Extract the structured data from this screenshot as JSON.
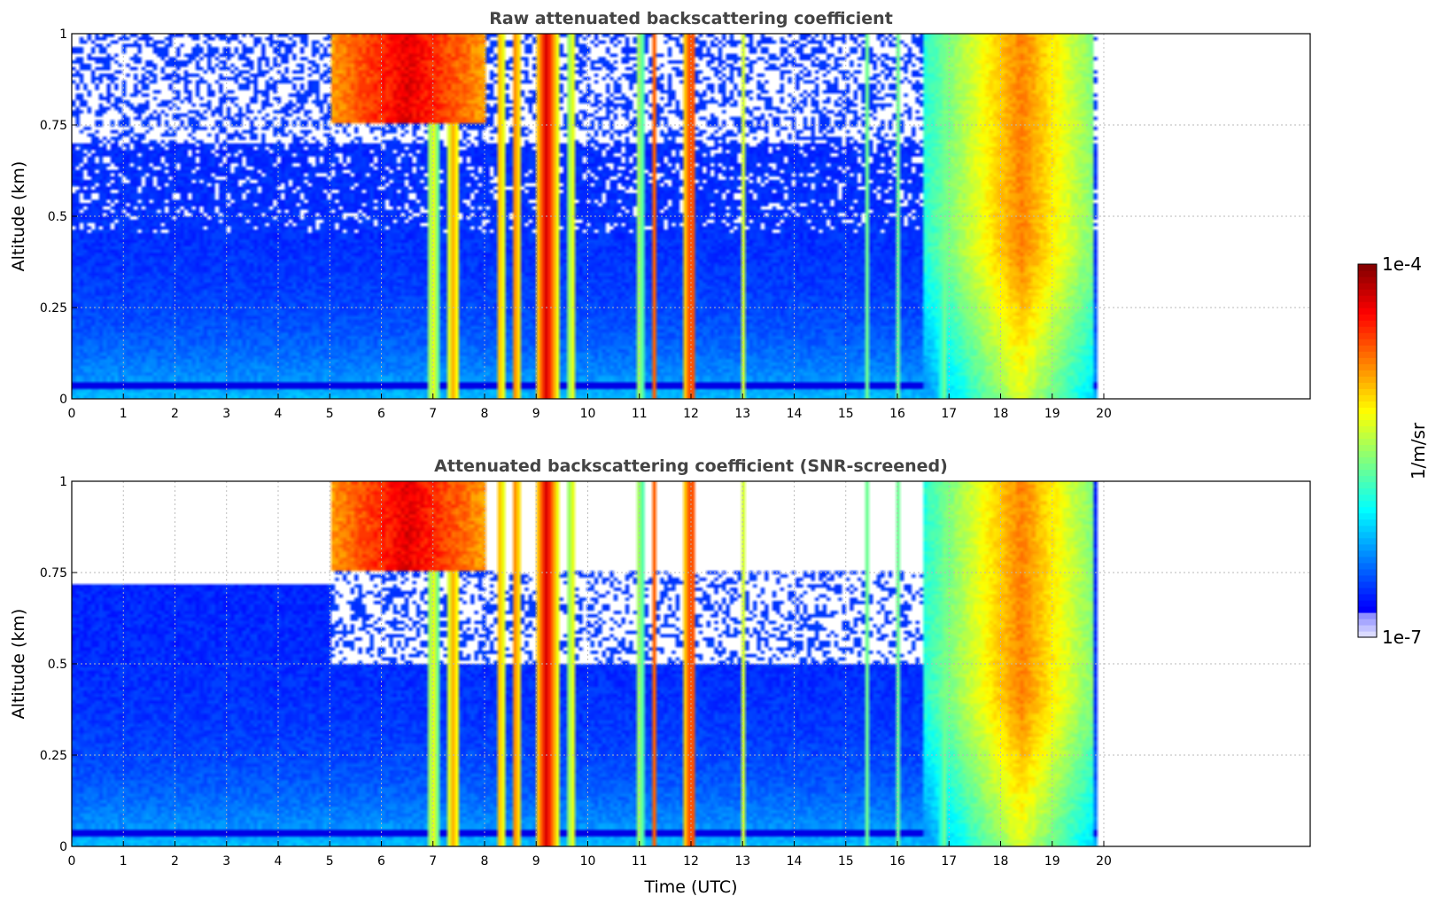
{
  "chart_data": [
    {
      "type": "heatmap",
      "title": "Raw attenuated backscattering coefficient",
      "xlabel": "",
      "ylabel": "Altitude (km)",
      "x_ticks": [
        "0",
        "1",
        "2",
        "3",
        "4",
        "5",
        "6",
        "7",
        "8",
        "9",
        "10",
        "11",
        "12",
        "13",
        "14",
        "15",
        "16",
        "17",
        "18",
        "19",
        "20"
      ],
      "y_ticks": [
        "0",
        "0.25",
        "0.5",
        "0.75",
        "1"
      ],
      "xlim": [
        0,
        24
      ],
      "ylim": [
        0,
        1
      ],
      "data_end_x": 19.85,
      "grid": true,
      "screened": false
    },
    {
      "type": "heatmap",
      "title": "Attenuated backscattering coefficient (SNR-screened)",
      "xlabel": "Time (UTC)",
      "ylabel": "Altitude (km)",
      "x_ticks": [
        "0",
        "1",
        "2",
        "3",
        "4",
        "5",
        "6",
        "7",
        "8",
        "9",
        "10",
        "11",
        "12",
        "13",
        "14",
        "15",
        "16",
        "17",
        "18",
        "19",
        "20"
      ],
      "y_ticks": [
        "0",
        "0.25",
        "0.5",
        "0.75",
        "1"
      ],
      "xlim": [
        0,
        24
      ],
      "ylim": [
        0,
        1
      ],
      "data_end_x": 19.85,
      "grid": true,
      "screened": true
    }
  ],
  "colorbar": {
    "label": "1/m/sr",
    "max_label": "1e-4",
    "min_label": "1e-7",
    "colormap": "jet",
    "scale": "log"
  }
}
